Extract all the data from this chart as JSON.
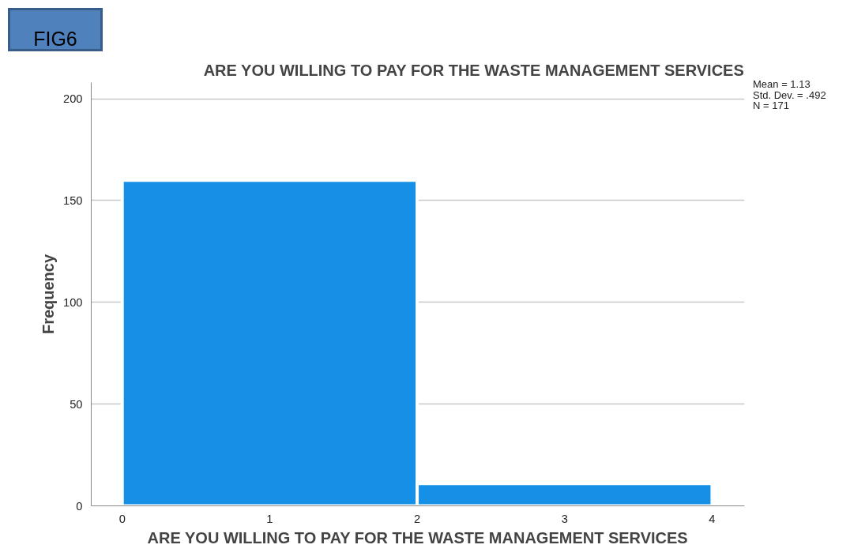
{
  "chart_data": {
    "type": "histogram",
    "title": "ARE YOU WILLING TO PAY FOR THE WASTE MANAGEMENT SERVICES",
    "xlabel": "ARE YOU WILLING TO PAY FOR THE WASTE MANAGEMENT SERVICES",
    "ylabel": "Frequency",
    "bins": [
      0,
      2,
      4
    ],
    "values": [
      160,
      11
    ],
    "color": "#1590e6",
    "xlim": [
      -0.21,
      4.22
    ],
    "xticks": [
      0,
      1,
      2,
      3,
      4
    ],
    "ylim": [
      0,
      208
    ],
    "yticks": [
      0,
      50,
      100,
      150,
      200
    ],
    "grid": "y",
    "annotations": [
      "FIG6",
      "Mean = 1.13",
      "Std. Dev. = .492",
      "N = 171"
    ]
  }
}
